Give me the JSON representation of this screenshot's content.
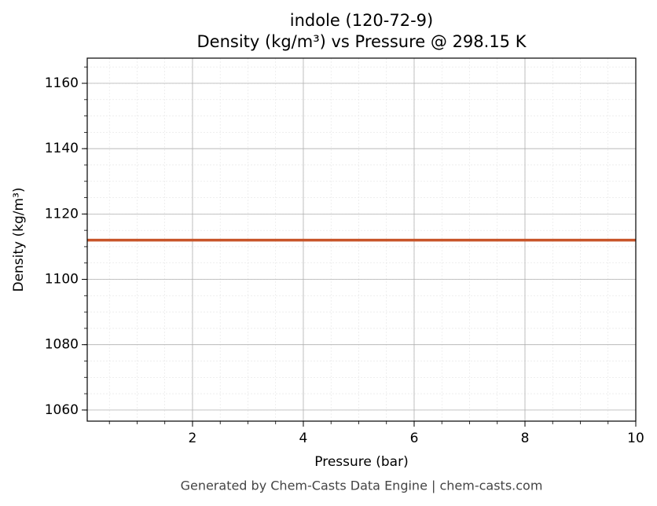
{
  "chart_data": {
    "type": "line",
    "title": "indole (120-72-9)",
    "subtitle": "Density (kg/m³) vs Pressure @ 298.15 K",
    "x_label": "Pressure (bar)",
    "y_label": "Density (kg/m³)",
    "footer": "Generated by Chem-Casts Data Engine | chem-casts.com",
    "x": [
      0.1,
      10
    ],
    "series": [
      {
        "name": "indole",
        "color": "#c8552a",
        "values": [
          1112,
          1112
        ]
      }
    ],
    "xlim": [
      0.1,
      10
    ],
    "xticks": [
      2,
      4,
      6,
      8,
      10
    ],
    "ylim": [
      1056.6,
      1167.7
    ],
    "yticks": [
      1060,
      1080,
      1100,
      1120,
      1140,
      1160
    ],
    "grid": true,
    "minor_grid": true
  }
}
